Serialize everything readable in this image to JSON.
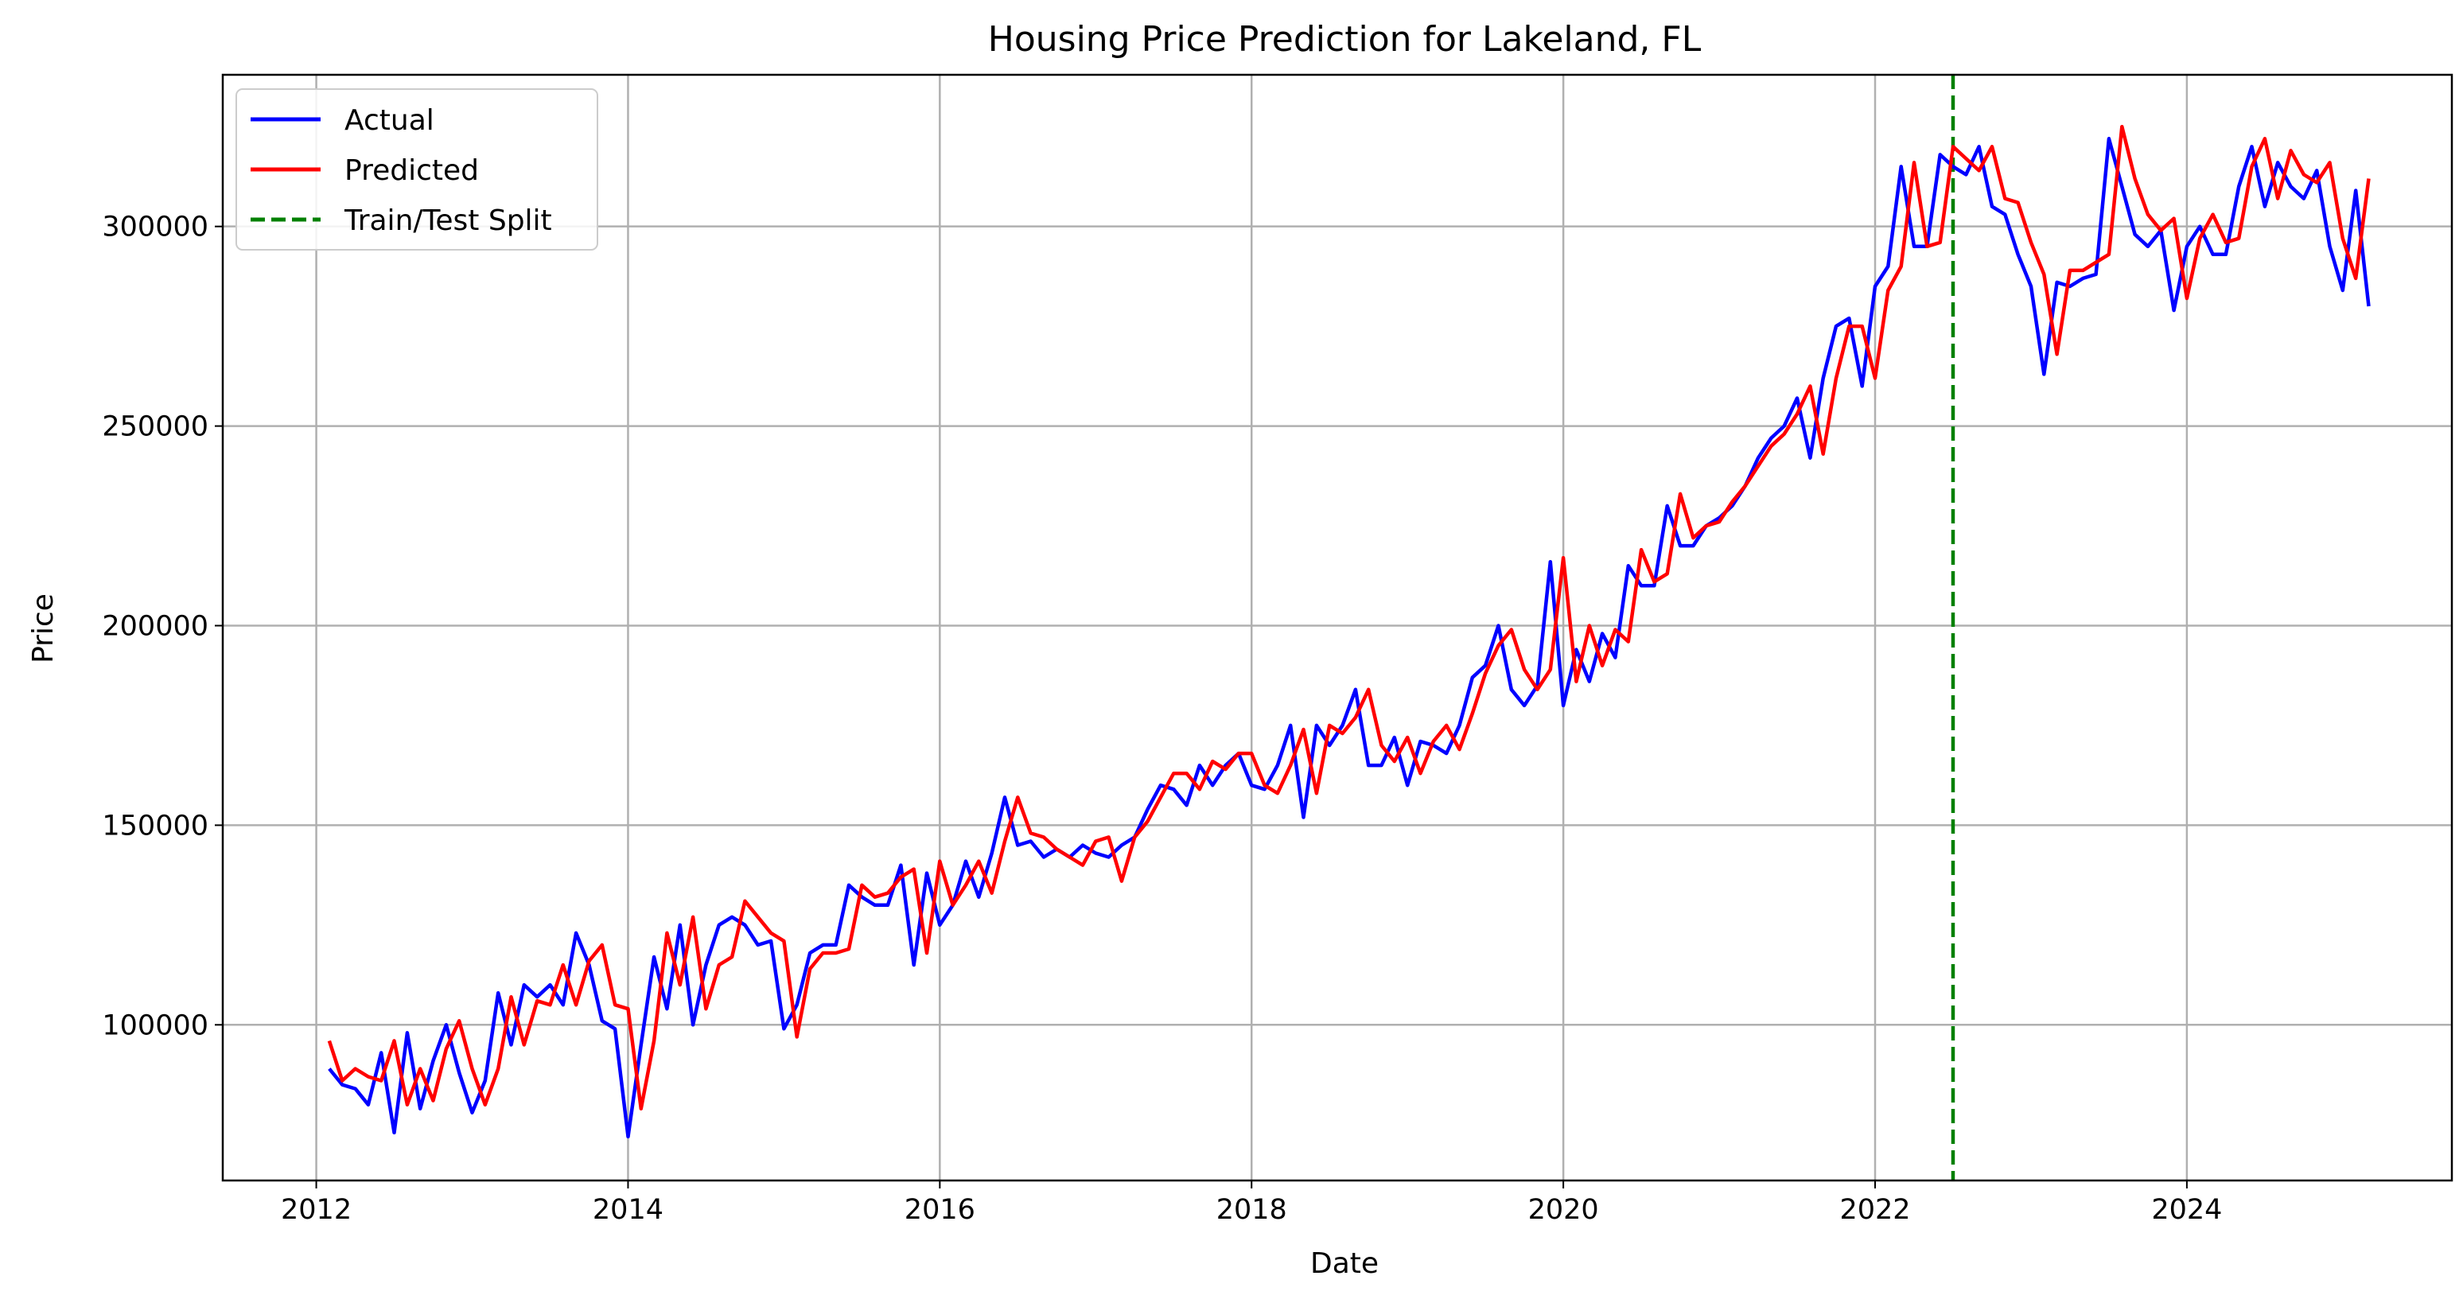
{
  "chart_data": {
    "type": "line",
    "title": "Housing Price Prediction for Lakeland, FL",
    "xlabel": "Date",
    "ylabel": "Price",
    "xlim": [
      2011.4,
      2025.7
    ],
    "ylim": [
      61000,
      338000
    ],
    "grid": true,
    "legend_position": "top-left",
    "x_ticks": [
      {
        "value": 2012,
        "label": "2012"
      },
      {
        "value": 2014,
        "label": "2014"
      },
      {
        "value": 2016,
        "label": "2016"
      },
      {
        "value": 2018,
        "label": "2018"
      },
      {
        "value": 2020,
        "label": "2020"
      },
      {
        "value": 2022,
        "label": "2022"
      },
      {
        "value": 2024,
        "label": "2024"
      }
    ],
    "y_ticks": [
      {
        "value": 100000,
        "label": "100000"
      },
      {
        "value": 150000,
        "label": "150000"
      },
      {
        "value": 200000,
        "label": "200000"
      },
      {
        "value": 250000,
        "label": "250000"
      },
      {
        "value": 300000,
        "label": "300000"
      }
    ],
    "x_start": "2012-02",
    "x_step": "1 month",
    "series": [
      {
        "name": "Actual",
        "color": "#0000ff",
        "style": "solid",
        "values": [
          89000,
          85000,
          84000,
          80000,
          93000,
          73000,
          98000,
          79000,
          91000,
          100000,
          88000,
          78000,
          86000,
          108000,
          95000,
          110000,
          107000,
          110000,
          105000,
          123000,
          115000,
          101000,
          99000,
          72000,
          95000,
          117000,
          104000,
          125000,
          100000,
          115000,
          125000,
          127000,
          125000,
          120000,
          121000,
          99000,
          105000,
          118000,
          120000,
          120000,
          135000,
          132000,
          130000,
          130000,
          140000,
          115000,
          138000,
          125000,
          130000,
          141000,
          132000,
          143000,
          157000,
          145000,
          146000,
          142000,
          144000,
          142000,
          145000,
          143000,
          142000,
          145000,
          147000,
          154000,
          160000,
          159000,
          155000,
          165000,
          160000,
          165000,
          168000,
          160000,
          159000,
          165000,
          175000,
          152000,
          175000,
          170000,
          175000,
          184000,
          165000,
          165000,
          172000,
          160000,
          171000,
          170000,
          168000,
          175000,
          187000,
          190000,
          200000,
          184000,
          180000,
          185000,
          216000,
          180000,
          194000,
          186000,
          198000,
          192000,
          215000,
          210000,
          210000,
          230000,
          220000,
          220000,
          225000,
          227000,
          230000,
          235000,
          242000,
          247000,
          250000,
          257000,
          242000,
          262000,
          275000,
          277000,
          260000,
          285000,
          290000,
          315000,
          295000,
          295000,
          318000,
          315000,
          313000,
          320000,
          305000,
          303000,
          293000,
          285000,
          263000,
          286000,
          285000,
          287000,
          288000,
          322000,
          310000,
          298000,
          295000,
          299000,
          279000,
          295000,
          300000,
          293000,
          293000,
          310000,
          320000,
          305000,
          316000,
          310000,
          307000,
          314000,
          295000,
          284000,
          309000,
          280000
        ]
      },
      {
        "name": "Predicted",
        "color": "#ff0000",
        "style": "solid",
        "values": [
          96000,
          86000,
          89000,
          87000,
          86000,
          96000,
          80000,
          89000,
          81000,
          94000,
          101000,
          89000,
          80000,
          89000,
          107000,
          95000,
          106000,
          105000,
          115000,
          105000,
          116000,
          120000,
          105000,
          104000,
          79000,
          96000,
          123000,
          110000,
          127000,
          104000,
          115000,
          117000,
          131000,
          127000,
          123000,
          121000,
          97000,
          114000,
          118000,
          118000,
          119000,
          135000,
          132000,
          133000,
          137000,
          139000,
          118000,
          141000,
          130000,
          135000,
          141000,
          133000,
          146000,
          157000,
          148000,
          147000,
          144000,
          142000,
          140000,
          146000,
          147000,
          136000,
          147000,
          151000,
          157000,
          163000,
          163000,
          159000,
          166000,
          164000,
          168000,
          168000,
          160000,
          158000,
          165000,
          174000,
          158000,
          175000,
          173000,
          177000,
          184000,
          170000,
          166000,
          172000,
          163000,
          171000,
          175000,
          169000,
          178000,
          188000,
          195000,
          199000,
          189000,
          184000,
          189000,
          217000,
          186000,
          200000,
          190000,
          199000,
          196000,
          219000,
          211000,
          213000,
          233000,
          222000,
          225000,
          226000,
          231000,
          235000,
          240000,
          245000,
          248000,
          253000,
          260000,
          243000,
          262000,
          275000,
          275000,
          262000,
          284000,
          290000,
          316000,
          295000,
          296000,
          320000,
          317000,
          314000,
          320000,
          307000,
          306000,
          296000,
          288000,
          268000,
          289000,
          289000,
          291000,
          293000,
          325000,
          312000,
          303000,
          299000,
          302000,
          282000,
          297000,
          303000,
          296000,
          297000,
          315000,
          322000,
          307000,
          319000,
          313000,
          311000,
          316000,
          297000,
          287000,
          312000
        ]
      }
    ],
    "annotations": [
      {
        "name": "Train/Test Split",
        "type": "vertical-line",
        "x": 2022.5,
        "color": "#008000",
        "style": "dashed"
      }
    ]
  }
}
